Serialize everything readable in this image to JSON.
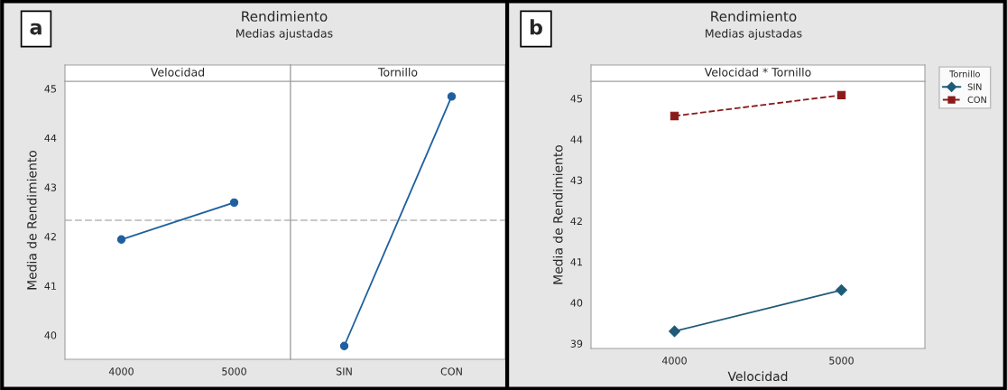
{
  "chart_data": [
    {
      "type": "line",
      "title": "Rendimiento",
      "subtitle": "Medias ajustadas",
      "annotations": [
        "a",
        "Velocidad"
      ],
      "ylabel": "Media de Rendimiento",
      "categories": [
        "4000",
        "5000"
      ],
      "series": [
        {
          "color": "#1f5f9f",
          "values": [
            41.94,
            42.69
          ],
          "marker": "circle",
          "line_style": "solid"
        }
      ],
      "ylim": [
        39.51,
        45.15
      ],
      "yticks": [
        40,
        41,
        42,
        43,
        44,
        45
      ],
      "grid": false,
      "legend": false,
      "ref_lines": [
        {
          "axis": "y",
          "value": 42.33,
          "color": "#c8c8c8",
          "line_style": "dashed"
        }
      ]
    },
    {
      "type": "line",
      "annotations": [
        "Tornillo"
      ],
      "categories": [
        "SIN",
        "CON"
      ],
      "series": [
        {
          "color": "#1f5f9f",
          "values": [
            39.78,
            44.84
          ],
          "marker": "circle",
          "line_style": "solid"
        }
      ],
      "ylim": [
        39.51,
        45.15
      ],
      "yticks": [
        40,
        41,
        42,
        43,
        44,
        45
      ],
      "tick_labels": "x",
      "grid": false,
      "legend": false,
      "ref_lines": [
        {
          "axis": "y",
          "value": 42.33,
          "color": "#c8c8c8",
          "line_style": "dashed"
        }
      ]
    },
    {
      "type": "line",
      "title": "Rendimiento",
      "subtitle": "Medias ajustadas",
      "annotations": [
        "b",
        "Velocidad * Tornillo"
      ],
      "xlabel": "Velocidad",
      "ylabel": "Media de Rendimiento",
      "legend_title": "Tornillo",
      "categories": [
        "4000",
        "5000"
      ],
      "series": [
        {
          "name": "SIN",
          "color": "#1f5a78",
          "values": [
            39.3,
            40.31
          ],
          "marker": "diamond",
          "line_style": "solid"
        },
        {
          "name": "CON",
          "color": "#8b1a1a",
          "values": [
            44.57,
            45.08
          ],
          "marker": "square",
          "line_style": "dashed"
        }
      ],
      "ylim": [
        38.88,
        45.42
      ],
      "yticks": [
        39,
        40,
        41,
        42,
        43,
        44,
        45
      ],
      "grid": false,
      "legend": "right"
    }
  ]
}
